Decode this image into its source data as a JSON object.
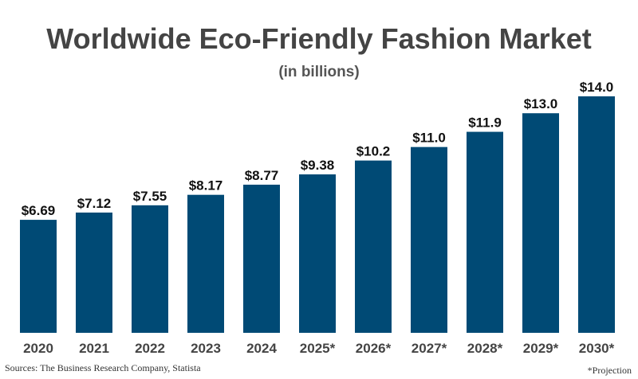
{
  "chart_data": {
    "type": "bar",
    "title": "Worldwide Eco-Friendly Fashion Market",
    "subtitle": "(in billions)",
    "categories": [
      "2020",
      "2021",
      "2022",
      "2023",
      "2024",
      "2025*",
      "2026*",
      "2027*",
      "2028*",
      "2029*",
      "2030*"
    ],
    "values": [
      6.69,
      7.12,
      7.55,
      8.17,
      8.77,
      9.38,
      10.2,
      11.0,
      11.9,
      13.0,
      14.0
    ],
    "data_labels": [
      "$6.69",
      "$7.12",
      "$7.55",
      "$8.17",
      "$8.77",
      "$9.38",
      "$10.2",
      "$11.0",
      "$11.9",
      "$13.0",
      "$14.0"
    ],
    "xlabel": "",
    "ylabel": "",
    "ylim": [
      0,
      14
    ],
    "grid": false,
    "bar_color": "#004a75"
  },
  "footer": {
    "source": "Sources: The Business Research Company, Statista",
    "note": "*Projection"
  }
}
